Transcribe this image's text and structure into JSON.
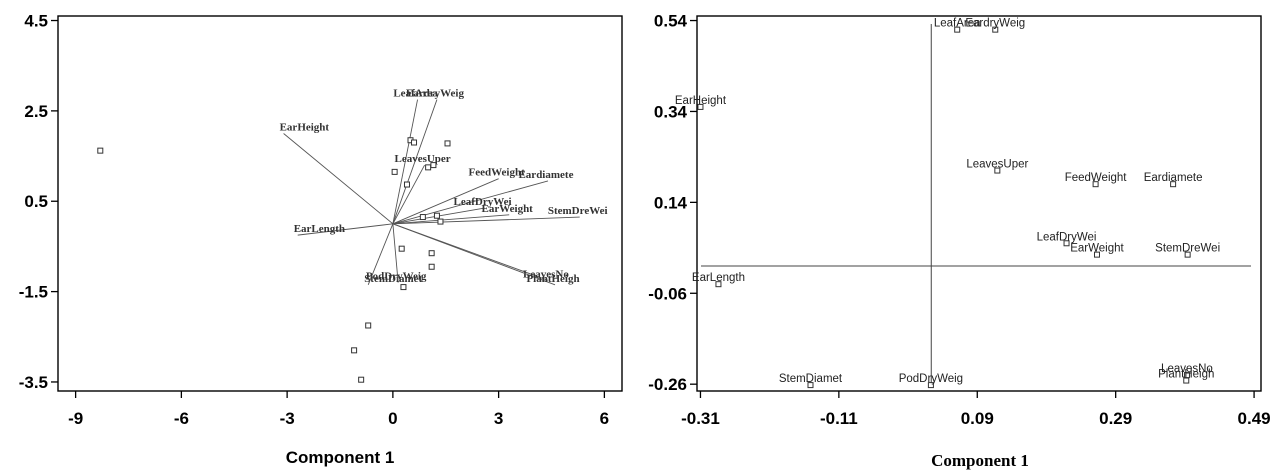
{
  "chart_data": [
    {
      "type": "biplot",
      "xlabel": "Component 1",
      "ylabel": "",
      "xlim": [
        -9.5,
        6.5
      ],
      "ylim": [
        -3.7,
        4.6
      ],
      "xticks": [
        "-9",
        "-6",
        "-3",
        "0",
        "3",
        "6"
      ],
      "yticks": [
        "4.5",
        "2.5",
        "0.5",
        "-1.5",
        "-3.5"
      ],
      "xtick_values": [
        -9,
        -6,
        -3,
        0,
        3,
        6
      ],
      "ytick_values": [
        4.5,
        2.5,
        0.5,
        -1.5,
        -3.5
      ],
      "points": [
        [
          -8.3,
          1.62
        ],
        [
          0.5,
          1.85
        ],
        [
          0.6,
          1.8
        ],
        [
          1.55,
          1.78
        ],
        [
          0.05,
          1.15
        ],
        [
          0.4,
          0.87
        ],
        [
          1.0,
          1.25
        ],
        [
          1.15,
          1.3
        ],
        [
          1.25,
          0.18
        ],
        [
          1.35,
          0.05
        ],
        [
          0.85,
          0.15
        ],
        [
          0.25,
          -0.55
        ],
        [
          1.1,
          -0.65
        ],
        [
          1.1,
          -0.95
        ],
        [
          -0.7,
          -2.25
        ],
        [
          -1.1,
          -2.8
        ],
        [
          -0.9,
          -3.45
        ],
        [
          0.3,
          -1.4
        ]
      ],
      "vectors": [
        {
          "label": "EarHeight",
          "x": -3.1,
          "y": 2.0
        },
        {
          "label": "LeafArea",
          "x": 0.7,
          "y": 2.75
        },
        {
          "label": "EardryWeig",
          "x": 1.25,
          "y": 2.75
        },
        {
          "label": "LeavesUper",
          "x": 0.9,
          "y": 1.3
        },
        {
          "label": "FeedWeight",
          "x": 3.0,
          "y": 1.0
        },
        {
          "label": "Eardiamete",
          "x": 4.4,
          "y": 0.95
        },
        {
          "label": "LeafDryWei",
          "x": 2.6,
          "y": 0.35
        },
        {
          "label": "EarWeight",
          "x": 3.3,
          "y": 0.2
        },
        {
          "label": "StemDreWei",
          "x": 5.3,
          "y": 0.15
        },
        {
          "label": "EarLength",
          "x": -2.7,
          "y": -0.25
        },
        {
          "label": "StemDiamet",
          "x": -0.7,
          "y": -1.35
        },
        {
          "label": "PodDryWeig",
          "x": 0.15,
          "y": -1.3
        },
        {
          "label": "LeavesNo",
          "x": 4.4,
          "y": -1.25
        },
        {
          "label": "PlantHeigh",
          "x": 4.6,
          "y": -1.35
        }
      ]
    },
    {
      "type": "scatter",
      "xlabel": "Component 1",
      "ylabel": "",
      "xlim": [
        -0.315,
        0.5
      ],
      "ylim": [
        -0.275,
        0.55
      ],
      "xticks": [
        "-0.31",
        "-0.11",
        "0.09",
        "0.29",
        "0.49"
      ],
      "yticks": [
        "0.54",
        "0.34",
        "0.14",
        "-0.06",
        "-0.26"
      ],
      "xtick_values": [
        -0.31,
        -0.11,
        0.09,
        0.29,
        0.49
      ],
      "ytick_values": [
        0.54,
        0.34,
        0.14,
        -0.06,
        -0.26
      ],
      "points": [
        {
          "label": "EarHeight",
          "x": -0.31,
          "y": 0.35
        },
        {
          "label": "LeafArea",
          "x": 0.061,
          "y": 0.52
        },
        {
          "label": "EardryWeig",
          "x": 0.116,
          "y": 0.52
        },
        {
          "label": "LeavesUper",
          "x": 0.119,
          "y": 0.21
        },
        {
          "label": "FeedWeight",
          "x": 0.261,
          "y": 0.18
        },
        {
          "label": "Eardiamete",
          "x": 0.373,
          "y": 0.18
        },
        {
          "label": "LeafDryWei",
          "x": 0.219,
          "y": 0.05
        },
        {
          "label": "EarWeight",
          "x": 0.263,
          "y": 0.025
        },
        {
          "label": "StemDreWei",
          "x": 0.394,
          "y": 0.025
        },
        {
          "label": "EarLength",
          "x": -0.284,
          "y": -0.04
        },
        {
          "label": "StemDiamet",
          "x": -0.151,
          "y": -0.262
        },
        {
          "label": "PodDryWeig",
          "x": 0.023,
          "y": -0.262
        },
        {
          "label": "LeavesNo",
          "x": 0.393,
          "y": -0.24
        },
        {
          "label": "PlantHeigh",
          "x": 0.392,
          "y": -0.252
        }
      ],
      "ref_lines": {
        "x": 0.0235,
        "y": 0.0
      }
    }
  ]
}
